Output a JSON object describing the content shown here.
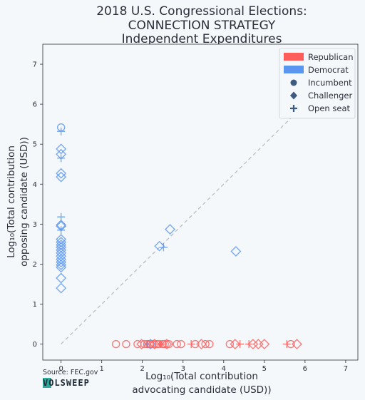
{
  "chart_data": {
    "type": "scatter",
    "title_lines": [
      "2018 U.S. Congressional Elections:",
      "CONNECTION STRATEGY",
      "Independent Expenditures"
    ],
    "xlabel_lines": [
      "Log₁₀(Total contribution",
      "advocating candidate (USD))"
    ],
    "ylabel_lines": [
      "Log₁₀(Total contribution",
      "opposing candidate (USD))"
    ],
    "xlim": [
      -0.45,
      7.3
    ],
    "ylim": [
      -0.4,
      7.5
    ],
    "xticks": [
      0,
      1,
      2,
      3,
      4,
      5,
      6,
      7
    ],
    "yticks": [
      0,
      1,
      2,
      3,
      4,
      5,
      6,
      7
    ],
    "tick_labels_x": [
      "0",
      "1",
      "2",
      "3",
      "4",
      "5",
      "6",
      "7"
    ],
    "tick_labels_y": [
      "0",
      "1",
      "2",
      "3",
      "4",
      "5",
      "6",
      "7"
    ],
    "grid": false,
    "legend_position": "top-right",
    "diagonal_reference": {
      "from": [
        0,
        0
      ],
      "to": [
        6.1,
        6.1
      ],
      "style": "dashed"
    },
    "colors": {
      "Republican": "#ff5c5c",
      "Democrat": "#5a96f0",
      "neutral": "#3d5a80"
    },
    "legend": [
      {
        "label": "Republican",
        "kind": "patch",
        "color": "#ff5c5c"
      },
      {
        "label": "Democrat",
        "kind": "patch",
        "color": "#5a96f0"
      },
      {
        "label": "Incumbent",
        "kind": "circle",
        "color": "#3d5a80"
      },
      {
        "label": "Challenger",
        "kind": "diamond",
        "color": "#3d5a80"
      },
      {
        "label": "Open seat",
        "kind": "plus",
        "color": "#3d5a80"
      }
    ],
    "series": [
      {
        "name": "Democrat",
        "points": [
          {
            "x": 0,
            "y": 5.42,
            "m": "circle"
          },
          {
            "x": 0,
            "y": 5.32,
            "m": "plus"
          },
          {
            "x": 0,
            "y": 4.88,
            "m": "diamond"
          },
          {
            "x": 0,
            "y": 4.75,
            "m": "diamond"
          },
          {
            "x": 0,
            "y": 4.65,
            "m": "plus"
          },
          {
            "x": 0,
            "y": 4.27,
            "m": "diamond"
          },
          {
            "x": 0,
            "y": 4.18,
            "m": "diamond"
          },
          {
            "x": 0,
            "y": 3.18,
            "m": "plus"
          },
          {
            "x": 0,
            "y": 2.98,
            "m": "diamond"
          },
          {
            "x": 0,
            "y": 2.95,
            "m": "diamond"
          },
          {
            "x": 0,
            "y": 2.85,
            "m": "plus"
          },
          {
            "x": 0,
            "y": 2.62,
            "m": "diamond"
          },
          {
            "x": 0,
            "y": 2.55,
            "m": "diamond"
          },
          {
            "x": 0,
            "y": 2.48,
            "m": "diamond"
          },
          {
            "x": 0,
            "y": 2.42,
            "m": "diamond"
          },
          {
            "x": 0,
            "y": 2.35,
            "m": "diamond"
          },
          {
            "x": 0,
            "y": 2.28,
            "m": "diamond"
          },
          {
            "x": 0,
            "y": 2.2,
            "m": "diamond"
          },
          {
            "x": 0,
            "y": 2.12,
            "m": "diamond"
          },
          {
            "x": 0,
            "y": 2.05,
            "m": "diamond"
          },
          {
            "x": 0,
            "y": 1.98,
            "m": "diamond"
          },
          {
            "x": 0,
            "y": 1.92,
            "m": "diamond"
          },
          {
            "x": 0,
            "y": 1.65,
            "m": "diamond"
          },
          {
            "x": 0,
            "y": 1.4,
            "m": "diamond"
          },
          {
            "x": 2.68,
            "y": 2.87,
            "m": "diamond"
          },
          {
            "x": 2.42,
            "y": 2.45,
            "m": "diamond"
          },
          {
            "x": 2.52,
            "y": 2.42,
            "m": "plus"
          },
          {
            "x": 4.3,
            "y": 2.32,
            "m": "diamond"
          },
          {
            "x": 2.12,
            "y": 0,
            "m": "plus"
          },
          {
            "x": 2.2,
            "y": 0,
            "m": "diamond"
          }
        ]
      },
      {
        "name": "Republican",
        "points": [
          {
            "x": 1.35,
            "y": 0,
            "m": "circle"
          },
          {
            "x": 1.6,
            "y": 0,
            "m": "circle"
          },
          {
            "x": 1.88,
            "y": 0,
            "m": "circle"
          },
          {
            "x": 1.98,
            "y": 0,
            "m": "diamond"
          },
          {
            "x": 2.05,
            "y": 0,
            "m": "circle"
          },
          {
            "x": 2.12,
            "y": 0,
            "m": "circle"
          },
          {
            "x": 2.18,
            "y": 0,
            "m": "circle"
          },
          {
            "x": 2.25,
            "y": 0,
            "m": "circle"
          },
          {
            "x": 2.3,
            "y": 0,
            "m": "diamond"
          },
          {
            "x": 2.35,
            "y": 0,
            "m": "circle"
          },
          {
            "x": 2.4,
            "y": 0,
            "m": "circle"
          },
          {
            "x": 2.45,
            "y": 0,
            "m": "plus"
          },
          {
            "x": 2.5,
            "y": 0,
            "m": "circle"
          },
          {
            "x": 2.55,
            "y": 0,
            "m": "circle"
          },
          {
            "x": 2.6,
            "y": 0,
            "m": "diamond"
          },
          {
            "x": 2.65,
            "y": 0,
            "m": "circle"
          },
          {
            "x": 2.85,
            "y": 0,
            "m": "circle"
          },
          {
            "x": 2.95,
            "y": 0,
            "m": "circle"
          },
          {
            "x": 3.2,
            "y": 0,
            "m": "plus"
          },
          {
            "x": 3.3,
            "y": 0,
            "m": "circle"
          },
          {
            "x": 3.45,
            "y": 0,
            "m": "diamond"
          },
          {
            "x": 3.55,
            "y": 0,
            "m": "circle"
          },
          {
            "x": 3.65,
            "y": 0,
            "m": "circle"
          },
          {
            "x": 4.15,
            "y": 0,
            "m": "circle"
          },
          {
            "x": 4.28,
            "y": 0,
            "m": "diamond"
          },
          {
            "x": 4.4,
            "y": 0,
            "m": "plus"
          },
          {
            "x": 4.62,
            "y": 0,
            "m": "plus"
          },
          {
            "x": 4.72,
            "y": 0,
            "m": "diamond"
          },
          {
            "x": 4.85,
            "y": 0,
            "m": "diamond"
          },
          {
            "x": 5.0,
            "y": 0,
            "m": "diamond"
          },
          {
            "x": 5.55,
            "y": 0,
            "m": "plus"
          },
          {
            "x": 5.65,
            "y": 0,
            "m": "circle"
          },
          {
            "x": 5.8,
            "y": 0,
            "m": "diamond"
          }
        ]
      }
    ]
  },
  "source": "Source: FEC.gov",
  "logo_text": "VOLSWEEP"
}
